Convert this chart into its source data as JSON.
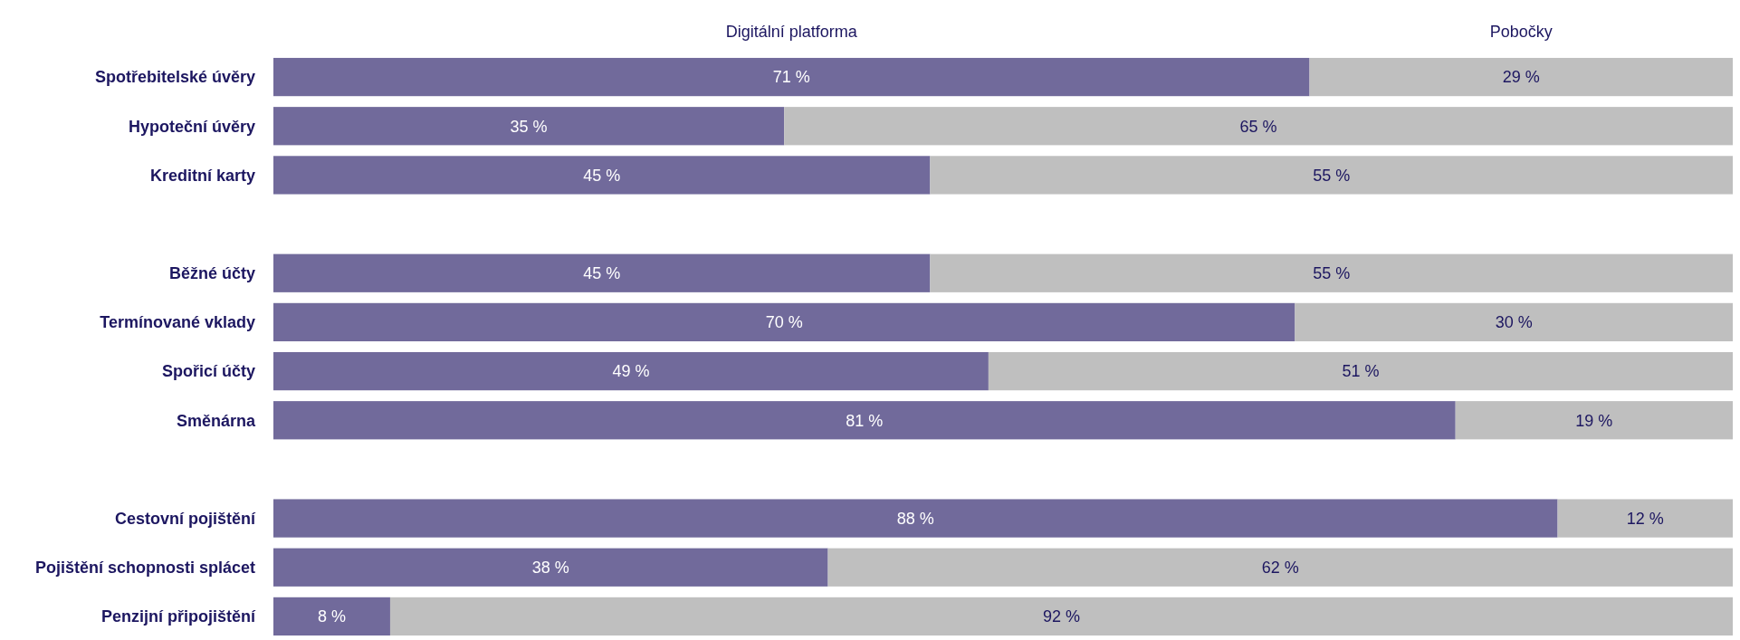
{
  "chart_data": {
    "type": "bar",
    "orientation": "horizontal",
    "stacked": true,
    "legend": "top",
    "categories": [
      "Spotřebitelské úvěry",
      "Hypoteční úvěry",
      "Kreditní karty",
      null,
      "Běžné účty",
      "Termínované vklady",
      "Spořicí účty",
      "Směnárna",
      null,
      "Cestovní pojištění",
      "Pojištění  schopnosti splácet",
      "Penzijní připojištění"
    ],
    "series": [
      {
        "name": "Digitální platforma",
        "color": "#716a9b",
        "values": [
          71,
          35,
          45,
          null,
          45,
          70,
          49,
          81,
          null,
          88,
          38,
          8
        ],
        "value_labels": [
          "71 %",
          "35 %",
          "45 %",
          null,
          "45 %",
          "70 %",
          "49 %",
          "81 %",
          null,
          "88 %",
          "38 %",
          "8 %"
        ]
      },
      {
        "name": "Pobočky",
        "color": "#bfbfbf",
        "values": [
          29,
          65,
          55,
          null,
          55,
          30,
          51,
          19,
          null,
          12,
          62,
          92
        ],
        "value_labels": [
          "29 %",
          "65 %",
          "55 %",
          null,
          "55 %",
          "30 %",
          "51 %",
          "19 %",
          null,
          "12 %",
          "62 %",
          "92 %"
        ]
      }
    ]
  }
}
